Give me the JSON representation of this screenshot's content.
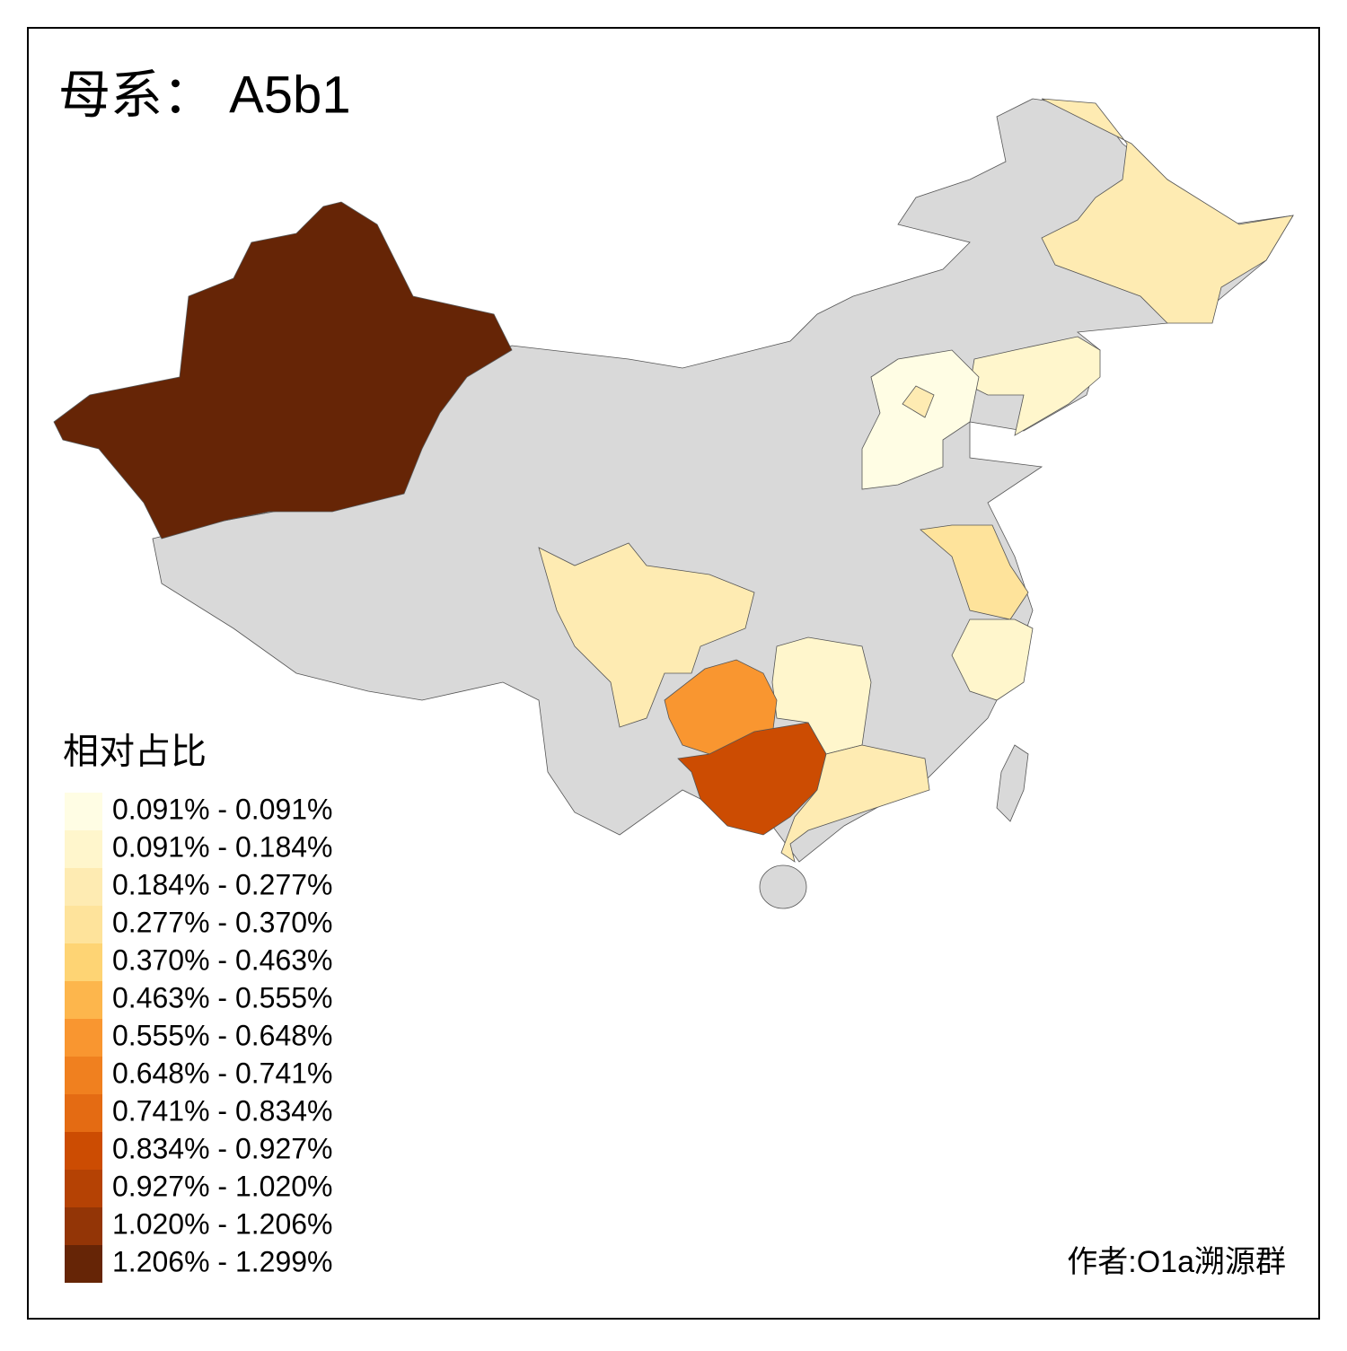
{
  "title": "母系： A5b1",
  "legend": {
    "title": "相对占比",
    "items": [
      {
        "label": "0.091% - 0.091%",
        "color": "#fffde4"
      },
      {
        "label": "0.091% - 0.184%",
        "color": "#fff6cc"
      },
      {
        "label": "0.184% - 0.277%",
        "color": "#feebb2"
      },
      {
        "label": "0.277% - 0.370%",
        "color": "#fee39b"
      },
      {
        "label": "0.370% - 0.463%",
        "color": "#fed474"
      },
      {
        "label": "0.463% - 0.555%",
        "color": "#fdb64c"
      },
      {
        "label": "0.555% - 0.648%",
        "color": "#f99630"
      },
      {
        "label": "0.648% - 0.741%",
        "color": "#f0801f"
      },
      {
        "label": "0.741% - 0.834%",
        "color": "#e46b13"
      },
      {
        "label": "0.834% - 0.927%",
        "color": "#cc4c02"
      },
      {
        "label": "0.927% - 1.020%",
        "color": "#b54204"
      },
      {
        "label": "1.020% - 1.206%",
        "color": "#933506"
      },
      {
        "label": "1.206% - 1.299%",
        "color": "#662506"
      }
    ]
  },
  "author": "作者:O1a溯源群"
}
